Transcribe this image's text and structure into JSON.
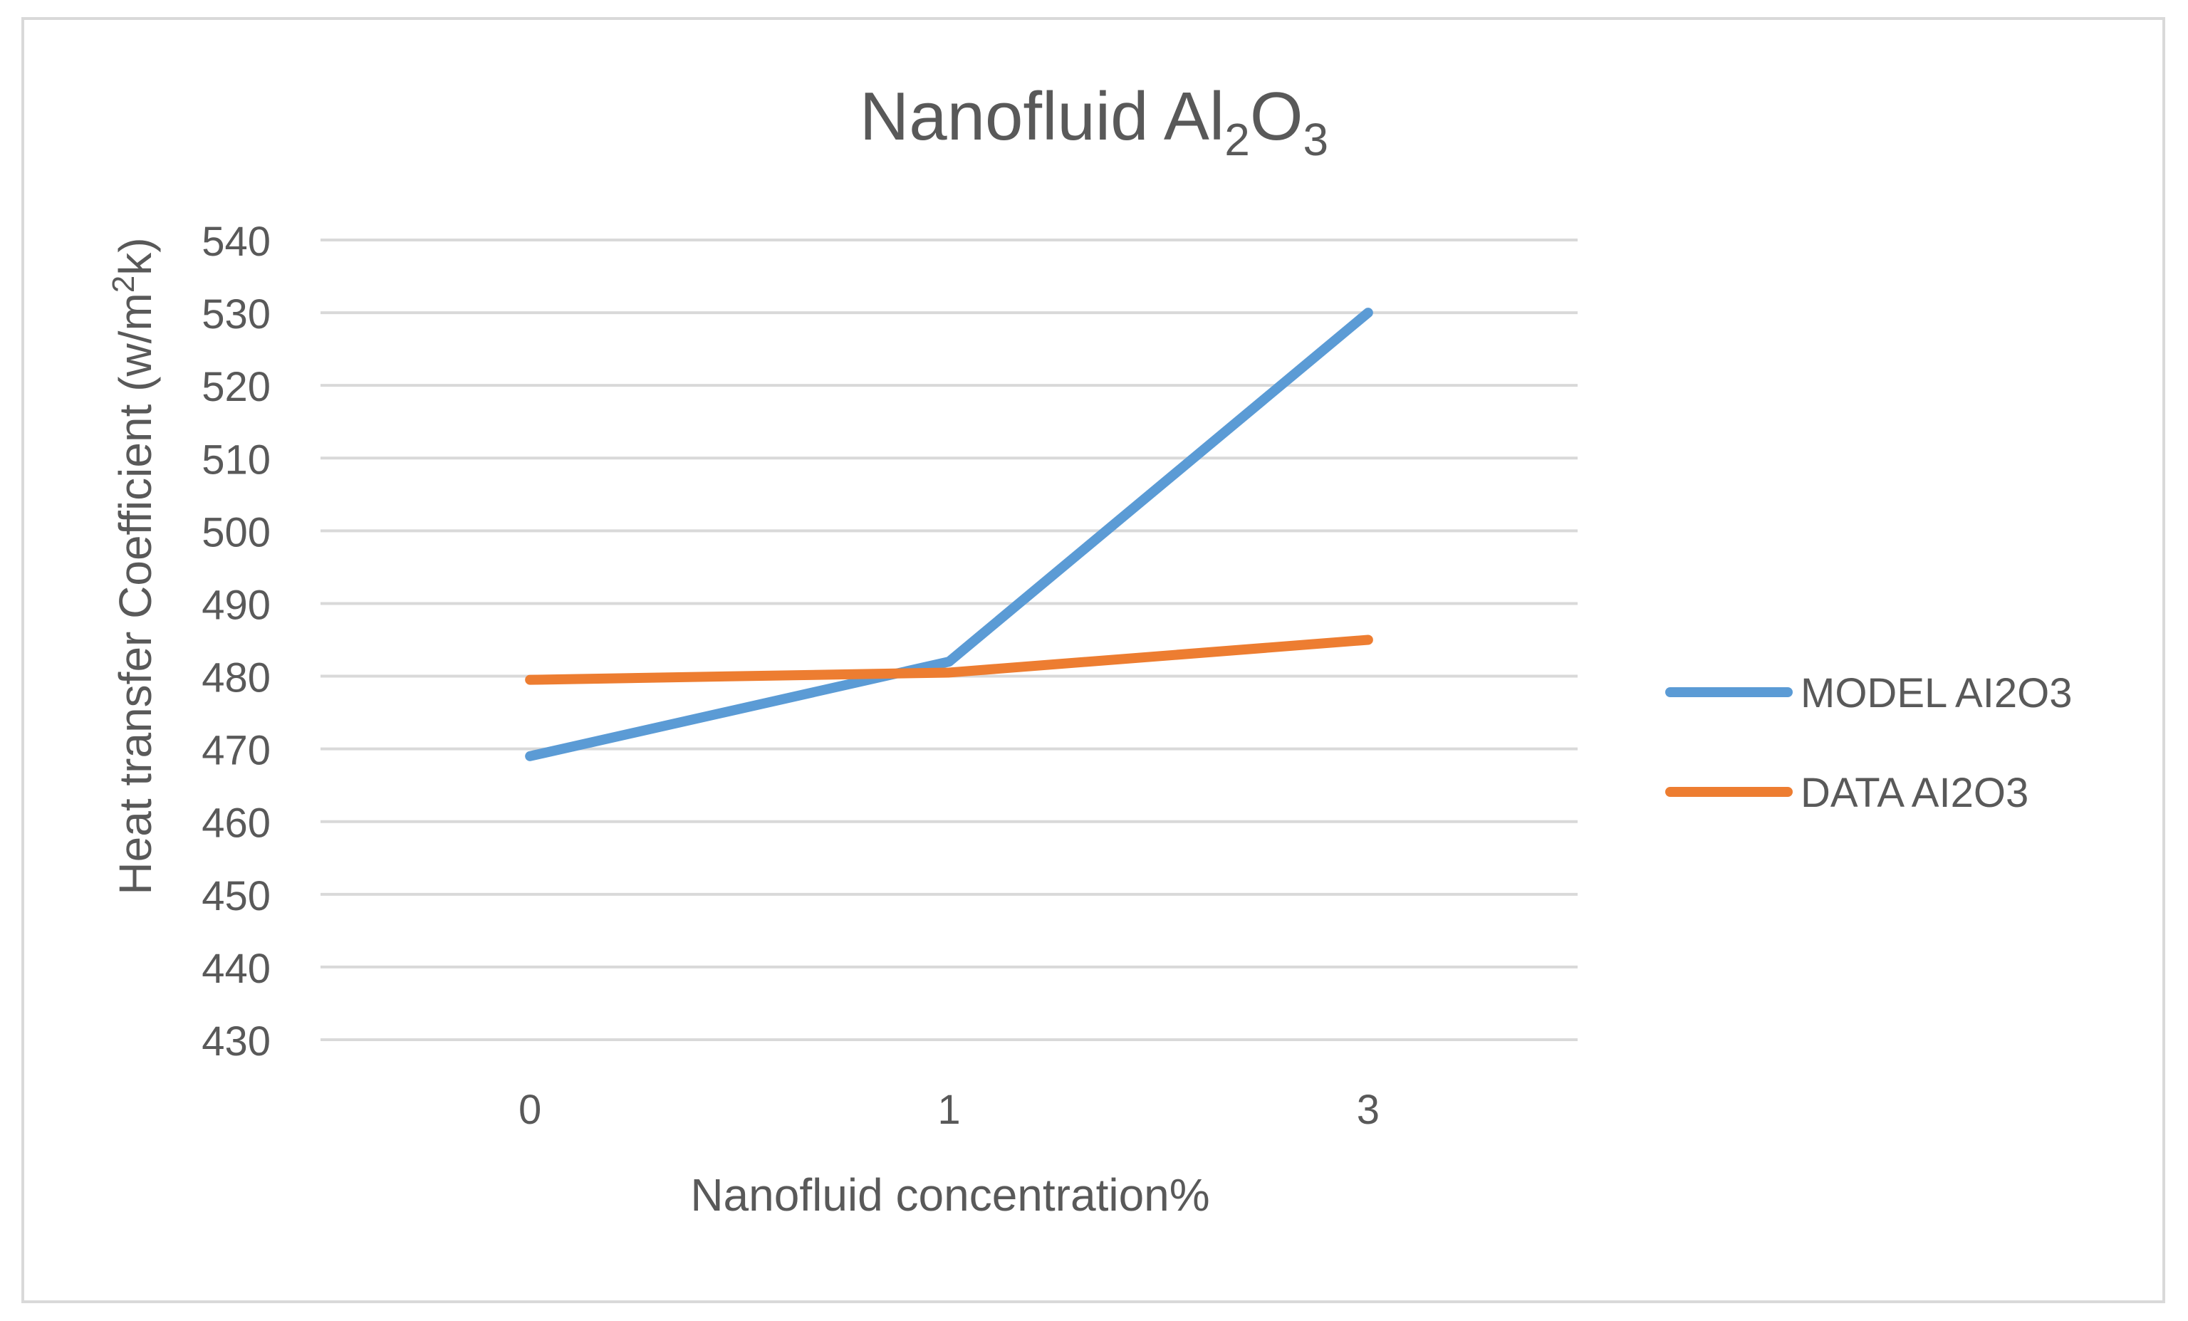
{
  "chart_data": {
    "type": "line",
    "title": {
      "base": "Nanofluid Al",
      "sub1": "2",
      "mid": "O",
      "sub2": "3"
    },
    "xlabel": "Nanofluid concentration%",
    "ylabel": {
      "base": "Heat transfer Coefficient (w/m",
      "sup": "2",
      "end": "k)"
    },
    "categories": [
      "0",
      "1",
      "3"
    ],
    "y_ticks": [
      430,
      440,
      450,
      460,
      470,
      480,
      490,
      500,
      510,
      520,
      530,
      540
    ],
    "ylim": [
      430,
      540
    ],
    "grid": true,
    "legend_position": "right",
    "series": [
      {
        "name": "MODEL AI2O3",
        "color": "#5b9bd5",
        "values": [
          469,
          482,
          530
        ]
      },
      {
        "name": "DATA AI2O3",
        "color": "#ed7d31",
        "values": [
          479.5,
          480.5,
          485
        ]
      }
    ]
  }
}
